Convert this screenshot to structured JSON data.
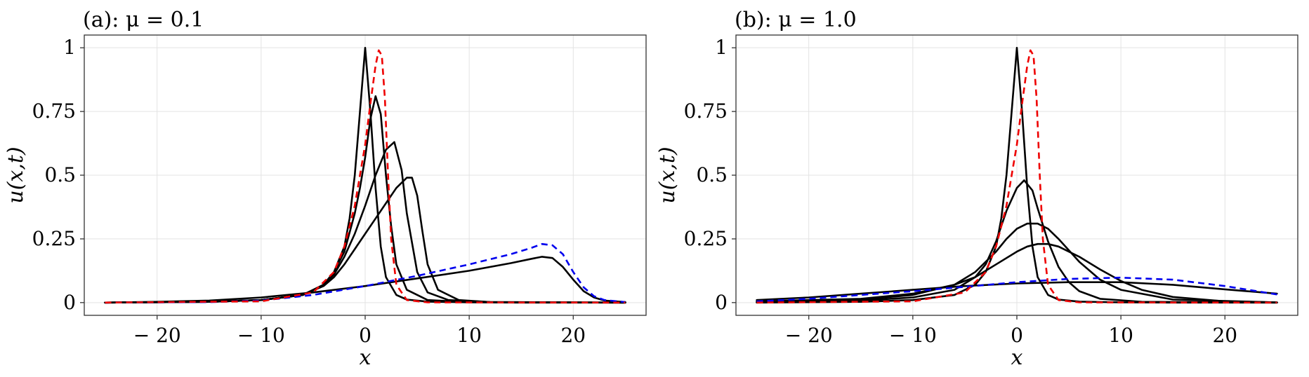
{
  "chart_data": [
    {
      "type": "line",
      "title": "(a): μ = 0.1",
      "xlabel": "x",
      "ylabel": "u(x,t)",
      "xlim": [
        -27,
        27
      ],
      "ylim": [
        -0.05,
        1.05
      ],
      "xticks": [
        -20,
        -10,
        0,
        10,
        20
      ],
      "xtick_labels": [
        "− 20",
        "− 10",
        "0",
        "10",
        "20"
      ],
      "yticks": [
        0,
        0.25,
        0.5,
        0.75,
        1
      ],
      "ytick_labels": [
        "0",
        "0.25",
        "0.5",
        "0.75",
        "1"
      ],
      "grid": true,
      "series": [
        {
          "color": "#000000",
          "dash": "solid",
          "x": [
            -25,
            -15,
            -10,
            -6,
            -4,
            -3,
            -2,
            -1.5,
            -1,
            -0.5,
            0,
            0.5,
            1,
            1.5,
            2,
            3,
            4,
            6,
            10,
            15,
            25
          ],
          "y": [
            0,
            0.003,
            0.01,
            0.03,
            0.07,
            0.12,
            0.22,
            0.33,
            0.5,
            0.75,
            1.0,
            0.75,
            0.45,
            0.22,
            0.1,
            0.03,
            0.012,
            0.004,
            0.001,
            0,
            0
          ]
        },
        {
          "color": "#000000",
          "dash": "solid",
          "x": [
            -25,
            -15,
            -10,
            -6,
            -4,
            -3,
            -2,
            -1,
            -0.5,
            0,
            0.5,
            1,
            1.5,
            2,
            2.5,
            3,
            4,
            6,
            10,
            25
          ],
          "y": [
            0,
            0.003,
            0.01,
            0.03,
            0.07,
            0.12,
            0.2,
            0.35,
            0.45,
            0.57,
            0.72,
            0.81,
            0.74,
            0.5,
            0.3,
            0.15,
            0.05,
            0.01,
            0.002,
            0
          ]
        },
        {
          "color": "#000000",
          "dash": "solid",
          "x": [
            -25,
            -15,
            -10,
            -6,
            -4,
            -3,
            -2,
            -1,
            0,
            1,
            2,
            2.8,
            3.5,
            4,
            5,
            6,
            8,
            12,
            25
          ],
          "y": [
            0,
            0.003,
            0.01,
            0.03,
            0.07,
            0.11,
            0.18,
            0.27,
            0.38,
            0.5,
            0.6,
            0.63,
            0.52,
            0.35,
            0.12,
            0.04,
            0.01,
            0.002,
            0
          ]
        },
        {
          "color": "#000000",
          "dash": "solid",
          "x": [
            -25,
            -15,
            -10,
            -6,
            -4,
            -3,
            -2,
            -1,
            0,
            1,
            2,
            3,
            4,
            4.5,
            5,
            5.5,
            6,
            7,
            9,
            12,
            25
          ],
          "y": [
            0,
            0.003,
            0.01,
            0.03,
            0.065,
            0.1,
            0.15,
            0.21,
            0.27,
            0.33,
            0.39,
            0.45,
            0.49,
            0.49,
            0.42,
            0.28,
            0.15,
            0.05,
            0.01,
            0.002,
            0
          ]
        },
        {
          "color": "#000000",
          "dash": "solid",
          "x": [
            -25,
            -20,
            -15,
            -10,
            -5,
            0,
            5,
            10,
            14,
            16,
            17,
            18,
            19,
            20,
            21,
            22,
            23,
            25
          ],
          "y": [
            0,
            0.003,
            0.008,
            0.02,
            0.04,
            0.065,
            0.095,
            0.125,
            0.155,
            0.172,
            0.18,
            0.175,
            0.14,
            0.09,
            0.045,
            0.02,
            0.008,
            0.002
          ]
        },
        {
          "color": "#0000ee",
          "dash": "dashed",
          "x": [
            -25,
            -15,
            -10,
            -5,
            0,
            5,
            10,
            14,
            16,
            17,
            18,
            19,
            20,
            21,
            22,
            23,
            25
          ],
          "y": [
            0,
            0.002,
            0.008,
            0.03,
            0.065,
            0.105,
            0.15,
            0.19,
            0.215,
            0.23,
            0.225,
            0.19,
            0.12,
            0.06,
            0.025,
            0.01,
            0.002
          ]
        },
        {
          "color": "#ee0000",
          "dash": "dashed",
          "x": [
            -25,
            -10,
            -5,
            -3,
            -2,
            -1,
            0,
            0.5,
            1,
            1.3,
            1.6,
            1.9,
            2.2,
            2.5,
            3,
            4,
            6,
            25
          ],
          "y": [
            0,
            0.005,
            0.04,
            0.12,
            0.22,
            0.38,
            0.62,
            0.78,
            0.93,
            0.99,
            0.97,
            0.8,
            0.5,
            0.25,
            0.07,
            0.01,
            0.001,
            0
          ]
        }
      ]
    },
    {
      "type": "line",
      "title": "(b): μ = 1.0",
      "xlabel": "x",
      "ylabel": "u(x,t)",
      "xlim": [
        -27,
        27
      ],
      "ylim": [
        -0.05,
        1.05
      ],
      "xticks": [
        -20,
        -10,
        0,
        10,
        20
      ],
      "xtick_labels": [
        "− 20",
        "− 10",
        "0",
        "10",
        "20"
      ],
      "yticks": [
        0,
        0.25,
        0.5,
        0.75,
        1
      ],
      "ytick_labels": [
        "0",
        "0.25",
        "0.5",
        "0.75",
        "1"
      ],
      "grid": true,
      "series": [
        {
          "color": "#000000",
          "dash": "solid",
          "x": [
            -25,
            -15,
            -10,
            -6,
            -4,
            -3,
            -2,
            -1.5,
            -1,
            -0.5,
            0,
            0.5,
            1,
            1.5,
            2,
            3,
            4,
            6,
            10,
            15,
            25
          ],
          "y": [
            0,
            0.003,
            0.01,
            0.03,
            0.07,
            0.12,
            0.22,
            0.33,
            0.5,
            0.75,
            1.0,
            0.75,
            0.45,
            0.22,
            0.1,
            0.03,
            0.012,
            0.004,
            0.001,
            0,
            0
          ]
        },
        {
          "color": "#000000",
          "dash": "solid",
          "x": [
            -25,
            -15,
            -10,
            -6,
            -4,
            -3,
            -2,
            -1,
            0,
            0.7,
            1.5,
            2,
            3,
            4,
            5,
            6,
            8,
            12,
            25
          ],
          "y": [
            0.002,
            0.008,
            0.02,
            0.05,
            0.1,
            0.15,
            0.24,
            0.36,
            0.45,
            0.48,
            0.44,
            0.37,
            0.24,
            0.14,
            0.08,
            0.045,
            0.015,
            0.003,
            0
          ]
        },
        {
          "color": "#000000",
          "dash": "solid",
          "x": [
            -25,
            -15,
            -10,
            -6,
            -4,
            -2,
            -1,
            0,
            1,
            2,
            3,
            4,
            6,
            8,
            10,
            15,
            25
          ],
          "y": [
            0.003,
            0.012,
            0.03,
            0.07,
            0.12,
            0.2,
            0.25,
            0.29,
            0.31,
            0.31,
            0.29,
            0.25,
            0.16,
            0.09,
            0.05,
            0.012,
            0.001
          ]
        },
        {
          "color": "#000000",
          "dash": "solid",
          "x": [
            -25,
            -15,
            -10,
            -6,
            -4,
            -2,
            0,
            1,
            2,
            3,
            4,
            6,
            8,
            10,
            12,
            15,
            20,
            25
          ],
          "y": [
            0.005,
            0.015,
            0.035,
            0.07,
            0.1,
            0.15,
            0.2,
            0.22,
            0.23,
            0.23,
            0.22,
            0.18,
            0.13,
            0.085,
            0.05,
            0.022,
            0.005,
            0.001
          ]
        },
        {
          "color": "#000000",
          "dash": "solid",
          "x": [
            -25,
            -20,
            -15,
            -10,
            -5,
            0,
            5,
            10,
            15,
            20,
            25
          ],
          "y": [
            0.01,
            0.02,
            0.035,
            0.05,
            0.065,
            0.075,
            0.08,
            0.08,
            0.07,
            0.052,
            0.035
          ]
        },
        {
          "color": "#0000ee",
          "dash": "dashed",
          "x": [
            -25,
            -20,
            -15,
            -10,
            -5,
            0,
            5,
            10,
            15,
            20,
            25
          ],
          "y": [
            0.005,
            0.015,
            0.03,
            0.045,
            0.062,
            0.08,
            0.093,
            0.098,
            0.09,
            0.065,
            0.032
          ]
        },
        {
          "color": "#ee0000",
          "dash": "dashed",
          "x": [
            -25,
            -10,
            -5,
            -3,
            -2,
            -1,
            0,
            0.5,
            1,
            1.3,
            1.6,
            1.9,
            2.2,
            2.5,
            3,
            4,
            6,
            25
          ],
          "y": [
            0,
            0.005,
            0.04,
            0.12,
            0.22,
            0.38,
            0.62,
            0.78,
            0.93,
            0.99,
            0.97,
            0.8,
            0.5,
            0.25,
            0.07,
            0.01,
            0.001,
            0
          ]
        }
      ]
    }
  ]
}
